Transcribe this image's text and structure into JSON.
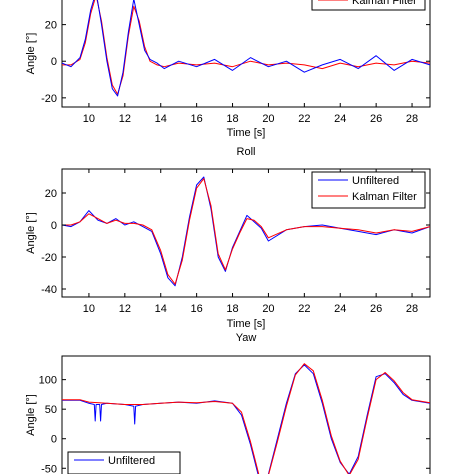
{
  "chart_data": [
    {
      "type": "line",
      "title": "",
      "xlabel": "Time [s]",
      "ylabel": "Angle [°]",
      "xlim": [
        8.5,
        29
      ],
      "ylim": [
        -25,
        40
      ],
      "xticks": [
        "10",
        "12",
        "14",
        "16",
        "18",
        "20",
        "22",
        "24",
        "26",
        "28"
      ],
      "yticks": [
        "-20",
        "0",
        "20"
      ],
      "ytick_values": [
        -20,
        0,
        20
      ],
      "legend": {
        "position": "top-right",
        "entries": [
          "Kalman Filter"
        ]
      },
      "series": [
        {
          "name": "Kalman Filter",
          "color": "#ff0000",
          "x": [
            8.5,
            9.0,
            9.5,
            9.8,
            10.1,
            10.4,
            10.7,
            11.0,
            11.3,
            11.6,
            11.9,
            12.2,
            12.5,
            12.8,
            13.1,
            13.4,
            13.8,
            14.2,
            15.0,
            16.0,
            17.0,
            18.0,
            19.0,
            20.0,
            21.0,
            22.0,
            23.0,
            24.0,
            25.0,
            26.0,
            27.0,
            28.0,
            29.0
          ],
          "values": [
            -2,
            -2,
            1,
            10,
            26,
            36,
            22,
            2,
            -13,
            -18,
            -8,
            14,
            30,
            22,
            8,
            0,
            -2,
            -3,
            -1,
            -2,
            -1,
            -3,
            0,
            -2,
            -1,
            -2,
            -4,
            -1,
            -3,
            -1,
            -2,
            0,
            -1
          ]
        },
        {
          "name": "",
          "color": "#0000ff",
          "x": [
            8.5,
            9.0,
            9.5,
            9.8,
            10.1,
            10.4,
            10.7,
            11.0,
            11.3,
            11.6,
            11.9,
            12.2,
            12.5,
            12.8,
            13.1,
            13.4,
            13.8,
            14.2,
            15.0,
            16.0,
            17.0,
            18.0,
            19.0,
            20.0,
            21.0,
            22.0,
            23.0,
            24.0,
            25.0,
            26.0,
            27.0,
            28.0,
            29.0
          ],
          "values": [
            -1,
            -3,
            2,
            12,
            28,
            38,
            20,
            0,
            -15,
            -19,
            -6,
            16,
            34,
            20,
            6,
            1,
            -1,
            -4,
            0,
            -3,
            1,
            -5,
            2,
            -3,
            0,
            -6,
            -2,
            1,
            -4,
            3,
            -5,
            1,
            -2
          ]
        }
      ]
    },
    {
      "type": "line",
      "title": "Roll",
      "xlabel": "Time [s]",
      "ylabel": "Angle [°]",
      "xlim": [
        8.5,
        29
      ],
      "ylim": [
        -45,
        35
      ],
      "xticks": [
        "10",
        "12",
        "14",
        "16",
        "18",
        "20",
        "22",
        "24",
        "26",
        "28"
      ],
      "yticks": [
        "-40",
        "-20",
        "0",
        "20"
      ],
      "ytick_values": [
        -40,
        -20,
        0,
        20
      ],
      "legend": {
        "position": "top-right",
        "entries": [
          "Unfiltered",
          "Kalman Filter"
        ]
      },
      "series": [
        {
          "name": "Unfiltered",
          "color": "#0000ff",
          "x": [
            8.5,
            9.0,
            9.5,
            10.0,
            10.5,
            11.0,
            11.5,
            12.0,
            12.5,
            13.0,
            13.5,
            14.0,
            14.4,
            14.8,
            15.2,
            15.6,
            16.0,
            16.4,
            16.8,
            17.2,
            17.6,
            18.0,
            18.4,
            18.8,
            19.2,
            19.6,
            20.0,
            21.0,
            22.0,
            23.0,
            24.0,
            25.0,
            26.0,
            27.0,
            28.0,
            29.0
          ],
          "values": [
            0,
            -1,
            2,
            9,
            3,
            1,
            4,
            0,
            2,
            -1,
            -4,
            -18,
            -33,
            -38,
            -20,
            5,
            25,
            30,
            10,
            -20,
            -29,
            -14,
            -4,
            6,
            2,
            -2,
            -10,
            -3,
            -1,
            0,
            -2,
            -4,
            -6,
            -3,
            -5,
            -1
          ]
        },
        {
          "name": "Kalman Filter",
          "color": "#ff0000",
          "x": [
            8.5,
            9.0,
            9.5,
            10.0,
            10.5,
            11.0,
            11.5,
            12.0,
            12.5,
            13.0,
            13.5,
            14.0,
            14.4,
            14.8,
            15.2,
            15.6,
            16.0,
            16.4,
            16.8,
            17.2,
            17.6,
            18.0,
            18.4,
            18.8,
            19.2,
            19.6,
            20.0,
            21.0,
            22.0,
            23.0,
            24.0,
            25.0,
            26.0,
            27.0,
            28.0,
            29.0
          ],
          "values": [
            0,
            0,
            2,
            7,
            4,
            1,
            3,
            1,
            1,
            0,
            -3,
            -16,
            -31,
            -37,
            -22,
            3,
            23,
            29,
            12,
            -18,
            -28,
            -15,
            -5,
            4,
            3,
            -1,
            -8,
            -3,
            -1,
            -1,
            -2,
            -3,
            -5,
            -3,
            -4,
            -1
          ]
        }
      ]
    },
    {
      "type": "line",
      "title": "Yaw",
      "xlabel": "",
      "ylabel": "Angle [°]",
      "xlim": [
        8.5,
        29
      ],
      "ylim": [
        -80,
        140
      ],
      "xticks": [],
      "yticks": [
        "-50",
        "0",
        "50",
        "100"
      ],
      "ytick_values": [
        -50,
        0,
        50,
        100
      ],
      "legend": {
        "position": "bottom-left",
        "entries": [
          "Unfiltered"
        ]
      },
      "series": [
        {
          "name": "Unfiltered",
          "color": "#0000ff",
          "x": [
            8.5,
            9.5,
            10.0,
            10.3,
            10.35,
            10.4,
            10.6,
            10.65,
            10.7,
            11.0,
            12.0,
            12.5,
            12.55,
            12.6,
            13.0,
            14.0,
            15.0,
            16.0,
            17.0,
            18.0,
            18.5,
            19.0,
            19.5,
            20.0,
            20.5,
            21.0,
            21.5,
            22.0,
            22.5,
            23.0,
            23.5,
            24.0,
            24.5,
            25.0,
            25.5,
            26.0,
            26.5,
            27.0,
            27.5,
            28.0,
            29.0
          ],
          "values": [
            65,
            65,
            60,
            58,
            30,
            58,
            58,
            30,
            58,
            60,
            58,
            55,
            25,
            55,
            58,
            60,
            62,
            60,
            64,
            60,
            40,
            -10,
            -70,
            -60,
            0,
            60,
            110,
            125,
            110,
            60,
            0,
            -40,
            -60,
            -30,
            40,
            105,
            110,
            95,
            75,
            65,
            60
          ]
        },
        {
          "name": "",
          "color": "#ff0000",
          "x": [
            8.5,
            9.5,
            10.0,
            11.0,
            12.0,
            13.0,
            14.0,
            15.0,
            16.0,
            17.0,
            18.0,
            18.5,
            19.0,
            19.5,
            20.0,
            20.5,
            21.0,
            21.5,
            22.0,
            22.5,
            23.0,
            23.5,
            24.0,
            24.5,
            25.0,
            25.5,
            26.0,
            26.5,
            27.0,
            27.5,
            28.0,
            29.0
          ],
          "values": [
            66,
            66,
            62,
            60,
            58,
            58,
            60,
            62,
            61,
            63,
            60,
            45,
            -5,
            -65,
            -62,
            -5,
            55,
            108,
            127,
            115,
            65,
            5,
            -38,
            -62,
            -35,
            35,
            100,
            112,
            98,
            78,
            66,
            61
          ]
        }
      ]
    }
  ]
}
